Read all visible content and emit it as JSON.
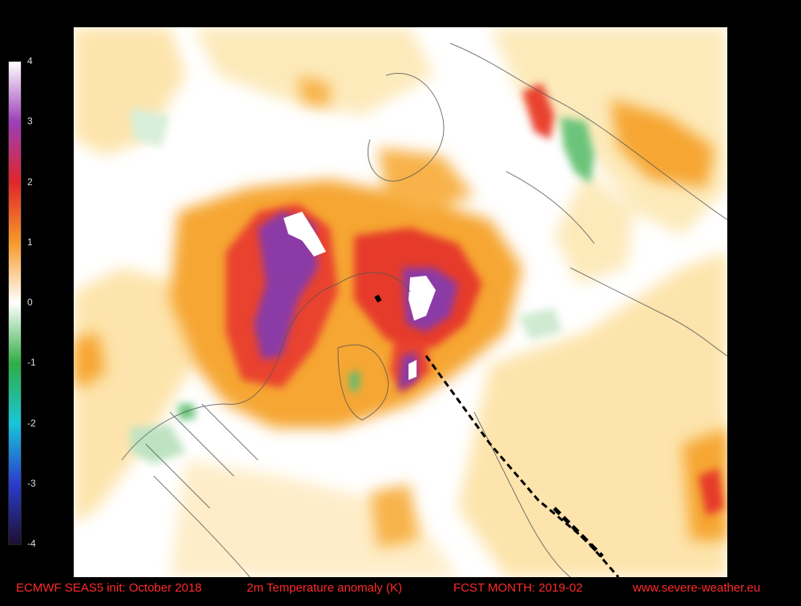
{
  "colorbar": {
    "ticks": [
      "4",
      "3",
      "2",
      "1",
      "0",
      "-1",
      "-2",
      "-3",
      "-4"
    ],
    "colors": [
      "#ffffff",
      "#9b3fb8",
      "#e0262a",
      "#f59a2a",
      "#ffffff",
      "#2fae45",
      "#19c5d8",
      "#2a3ccc",
      "#1d1030"
    ]
  },
  "footer": {
    "model": "ECMWF SEAS5 init: October 2018",
    "variable": "2m Temperature anomaly (K)",
    "forecast": "FCST MONTH: 2019-02",
    "site": "www.severe-weather.eu"
  }
}
